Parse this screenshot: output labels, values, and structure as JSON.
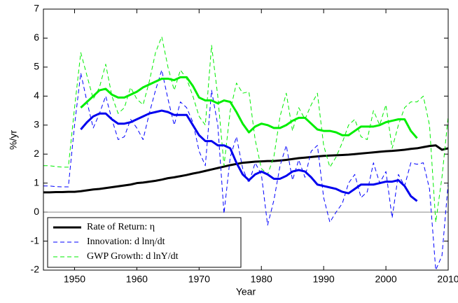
{
  "chart_data": {
    "type": "line",
    "xlabel": "Year",
    "ylabel": "%/yr",
    "x": [
      1945,
      1946,
      1947,
      1948,
      1949,
      1950,
      1951,
      1952,
      1953,
      1954,
      1955,
      1956,
      1957,
      1958,
      1959,
      1960,
      1961,
      1962,
      1963,
      1964,
      1965,
      1966,
      1967,
      1968,
      1969,
      1970,
      1971,
      1972,
      1973,
      1974,
      1975,
      1976,
      1977,
      1978,
      1979,
      1980,
      1981,
      1982,
      1983,
      1984,
      1985,
      1986,
      1987,
      1988,
      1989,
      1990,
      1991,
      1992,
      1993,
      1994,
      1995,
      1996,
      1997,
      1998,
      1999,
      2000,
      2001,
      2002,
      2003,
      2004,
      2005,
      2006,
      2007,
      2008,
      2009,
      2010
    ],
    "xlim": [
      1945,
      2010
    ],
    "xticks": [
      1950,
      1960,
      1970,
      1980,
      1990,
      2000,
      2010
    ],
    "ylim": [
      -2,
      7
    ],
    "yticks": [
      -2,
      -1,
      0,
      1,
      2,
      3,
      4,
      5,
      6,
      7
    ],
    "zero_line": true,
    "legend": "lower left",
    "series": [
      {
        "name": "Rate of Return: η",
        "color": "#000000",
        "linestyle": "bold-solid",
        "values": [
          0.68,
          0.68,
          0.69,
          0.69,
          0.7,
          0.7,
          0.72,
          0.75,
          0.78,
          0.8,
          0.83,
          0.86,
          0.89,
          0.92,
          0.95,
          1.0,
          1.02,
          1.05,
          1.08,
          1.12,
          1.17,
          1.2,
          1.24,
          1.28,
          1.33,
          1.37,
          1.42,
          1.47,
          1.52,
          1.57,
          1.62,
          1.66,
          1.7,
          1.72,
          1.74,
          1.75,
          1.76,
          1.76,
          1.78,
          1.8,
          1.83,
          1.86,
          1.88,
          1.9,
          1.92,
          1.94,
          1.95,
          1.96,
          1.97,
          1.98,
          2.0,
          2.02,
          2.04,
          2.06,
          2.08,
          2.1,
          2.11,
          2.13,
          2.15,
          2.18,
          2.2,
          2.24,
          2.28,
          2.3,
          2.15,
          2.2
        ]
      },
      {
        "name": "Innovation: d lnη/dt",
        "color": "#0000ff",
        "linestyle": "dashed",
        "values": [
          0.9,
          0.9,
          0.88,
          0.87,
          0.87,
          3.0,
          4.8,
          3.8,
          2.9,
          3.4,
          4.0,
          3.2,
          2.5,
          2.6,
          3.2,
          2.9,
          2.5,
          3.4,
          4.2,
          4.9,
          3.9,
          3.0,
          3.8,
          3.6,
          3.1,
          2.1,
          1.6,
          4.2,
          3.0,
          -0.05,
          1.9,
          2.6,
          1.5,
          1.0,
          1.7,
          1.3,
          -0.45,
          0.4,
          1.6,
          2.3,
          1.1,
          1.8,
          1.2,
          2.1,
          2.3,
          0.5,
          -0.35,
          0.0,
          0.3,
          1.0,
          1.3,
          0.5,
          0.7,
          1.7,
          1.0,
          1.4,
          -0.2,
          1.3,
          0.9,
          1.7,
          1.65,
          1.7,
          0.8,
          -2.0,
          -1.5,
          1.0
        ]
      },
      {
        "name": "GWP Growth: d lnY/dt",
        "color": "#00ee00",
        "linestyle": "dashed",
        "values": [
          1.6,
          1.6,
          1.57,
          1.55,
          1.55,
          3.6,
          5.5,
          4.7,
          3.9,
          4.3,
          5.1,
          4.0,
          3.4,
          3.6,
          4.3,
          3.9,
          3.7,
          4.5,
          5.5,
          6.05,
          5.0,
          4.2,
          4.9,
          4.6,
          4.0,
          3.3,
          3.0,
          5.75,
          4.0,
          1.6,
          3.5,
          4.45,
          4.1,
          4.15,
          2.5,
          1.5,
          1.3,
          1.9,
          3.3,
          4.1,
          2.8,
          3.6,
          3.2,
          3.7,
          4.1,
          2.3,
          1.55,
          1.9,
          2.4,
          3.0,
          3.2,
          2.6,
          2.5,
          3.5,
          3.0,
          3.7,
          2.2,
          3.0,
          3.6,
          3.8,
          3.8,
          4.0,
          3.0,
          -0.35,
          1.2,
          3.3
        ]
      },
      {
        "color": "#0000ee",
        "linestyle": "bold-solid",
        "values": [
          null,
          null,
          null,
          null,
          null,
          null,
          2.85,
          3.1,
          3.3,
          3.4,
          3.4,
          3.2,
          3.05,
          3.05,
          3.1,
          3.2,
          3.3,
          3.4,
          3.45,
          3.5,
          3.45,
          3.35,
          3.35,
          3.35,
          3.0,
          2.65,
          2.45,
          2.45,
          2.3,
          2.3,
          2.2,
          1.7,
          1.3,
          1.1,
          1.3,
          1.4,
          1.3,
          1.15,
          1.15,
          1.25,
          1.4,
          1.45,
          1.4,
          1.2,
          0.95,
          0.9,
          0.85,
          0.8,
          0.7,
          0.65,
          0.8,
          0.95,
          0.95,
          0.95,
          1.0,
          1.05,
          1.05,
          1.1,
          0.9,
          0.55,
          0.38,
          null,
          null,
          null,
          null,
          null
        ]
      },
      {
        "color": "#00ee00",
        "linestyle": "bold-solid",
        "values": [
          null,
          null,
          null,
          null,
          null,
          null,
          3.6,
          3.8,
          4.0,
          4.2,
          4.25,
          4.05,
          3.95,
          3.95,
          4.05,
          4.15,
          4.3,
          4.4,
          4.5,
          4.6,
          4.6,
          4.55,
          4.65,
          4.65,
          4.35,
          3.95,
          3.85,
          3.85,
          3.75,
          3.85,
          3.8,
          3.45,
          3.05,
          2.75,
          2.95,
          3.05,
          3.0,
          2.9,
          2.9,
          3.0,
          3.15,
          3.25,
          3.25,
          3.05,
          2.85,
          2.8,
          2.8,
          2.75,
          2.65,
          2.65,
          2.8,
          2.95,
          2.95,
          2.95,
          3.0,
          3.1,
          3.15,
          3.2,
          3.2,
          2.8,
          2.55,
          null,
          null,
          null,
          null,
          null
        ]
      }
    ]
  }
}
